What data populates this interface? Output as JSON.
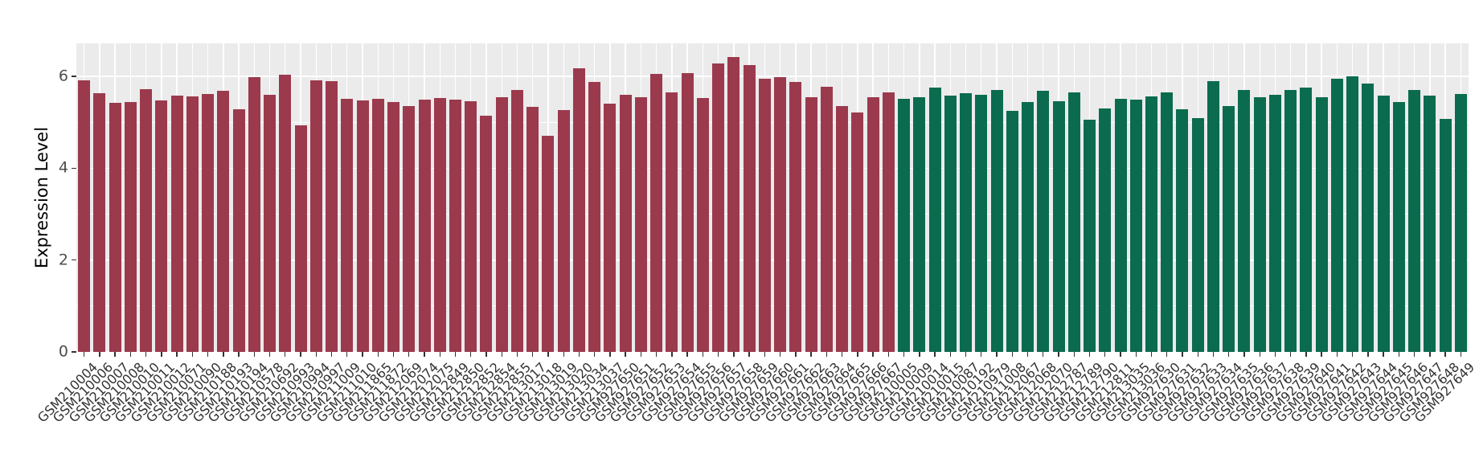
{
  "chart_data": {
    "type": "bar",
    "title": "",
    "xlabel": "",
    "ylabel": "Expression Level",
    "ylim": [
      0,
      6.72
    ],
    "yticks": [
      0,
      2,
      4,
      6
    ],
    "grid": "gray-panel-white-gridlines",
    "legend": "none",
    "split_index": 53,
    "group_colors": [
      "#9B3A4D",
      "#0B6B4F"
    ],
    "groups": [
      {
        "name": "left-group",
        "color": "#9B3A4D",
        "count": 53
      },
      {
        "name": "right-group",
        "color": "#0B6B4F",
        "count": 37
      }
    ],
    "categories": [
      "GSM210004",
      "GSM210006",
      "GSM210007",
      "GSM210008",
      "GSM210010",
      "GSM210011",
      "GSM210012",
      "GSM210071",
      "GSM210090",
      "GSM210188",
      "GSM210193",
      "GSM210194",
      "GSM210578",
      "GSM210692",
      "GSM210993",
      "GSM210994",
      "GSM210997",
      "GSM211009",
      "GSM211010",
      "GSM211865",
      "GSM211872",
      "GSM212069",
      "GSM212074",
      "GSM212075",
      "GSM212849",
      "GSM212850",
      "GSM212852",
      "GSM212854",
      "GSM212855",
      "GSM213017",
      "GSM213018",
      "GSM213019",
      "GSM213020",
      "GSM213034",
      "GSM213037",
      "GSM927650",
      "GSM927651",
      "GSM927652",
      "GSM927653",
      "GSM927654",
      "GSM927655",
      "GSM927656",
      "GSM927657",
      "GSM927658",
      "GSM927659",
      "GSM927660",
      "GSM927661",
      "GSM927662",
      "GSM927663",
      "GSM927664",
      "GSM927665",
      "GSM927666",
      "GSM927667",
      "GSM210005",
      "GSM210009",
      "GSM210014",
      "GSM210015",
      "GSM210087",
      "GSM210192",
      "GSM210979",
      "GSM211008",
      "GSM212067",
      "GSM212068",
      "GSM212070",
      "GSM212787",
      "GSM212789",
      "GSM212790",
      "GSM212811",
      "GSM213035",
      "GSM213036",
      "GSM927630",
      "GSM927631",
      "GSM927632",
      "GSM927633",
      "GSM927634",
      "GSM927635",
      "GSM927636",
      "GSM927637",
      "GSM927638",
      "GSM927639",
      "GSM927640",
      "GSM927641",
      "GSM927642",
      "GSM927643",
      "GSM927644",
      "GSM927645",
      "GSM927646",
      "GSM927647",
      "GSM927648",
      "GSM927649"
    ],
    "values": [
      5.92,
      5.63,
      5.42,
      5.45,
      5.72,
      5.48,
      5.58,
      5.57,
      5.62,
      5.68,
      5.28,
      5.98,
      5.6,
      6.03,
      4.93,
      5.92,
      5.9,
      5.52,
      5.48,
      5.52,
      5.45,
      5.36,
      5.5,
      5.53,
      5.5,
      5.46,
      5.15,
      5.55,
      5.7,
      5.33,
      4.7,
      5.26,
      6.18,
      5.88,
      5.4,
      5.6,
      5.55,
      6.05,
      5.65,
      6.08,
      5.53,
      6.28,
      6.42,
      6.25,
      5.95,
      5.98,
      5.88,
      5.55,
      5.78,
      5.35,
      5.22,
      5.55,
      5.65,
      5.52,
      5.55,
      5.75,
      5.58,
      5.63,
      5.6,
      5.7,
      5.25,
      5.45,
      5.68,
      5.46,
      5.65,
      5.05,
      5.3,
      5.52,
      5.5,
      5.56,
      5.65,
      5.28,
      5.1,
      5.9,
      5.35,
      5.7,
      5.55,
      5.6,
      5.7,
      5.75,
      5.55,
      5.95,
      6.0,
      5.85,
      5.58,
      5.45,
      5.7,
      5.58,
      5.08,
      5.62
    ]
  },
  "panel_background": "#EBEBEB",
  "gridline_color": "#FFFFFF",
  "axis_text_color": "#4D4D4D"
}
